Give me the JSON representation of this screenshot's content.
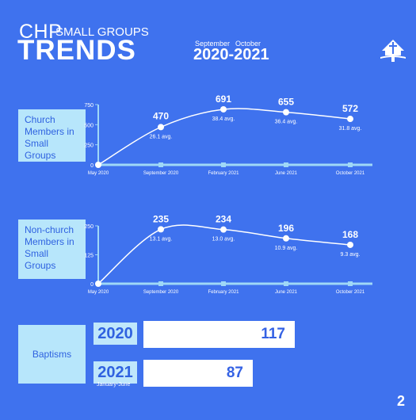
{
  "header": {
    "chp": "CHP",
    "small_groups": "SMALL GROUPS",
    "trends": "TRENDS",
    "month_start": "September",
    "month_end": "October",
    "years": "2020-2021"
  },
  "labels": {
    "church": "Church Members in Small Groups",
    "nonchurch": "Non-church Members in Small Groups",
    "baptisms": "Baptisms"
  },
  "chart_data": [
    {
      "type": "line",
      "x": [
        "May 2020",
        "September 2020",
        "February 2021",
        "June 2021",
        "October 2021"
      ],
      "values": [
        0,
        470,
        691,
        655,
        572
      ],
      "point_labels": [
        "",
        "470",
        "691",
        "655",
        "572"
      ],
      "avg_labels": [
        "",
        "26.1 avg.",
        "38.4 avg.",
        "36.4 avg.",
        "31.8 avg."
      ],
      "yticks": [
        "750",
        "500",
        "250",
        "0"
      ],
      "ylim": [
        0,
        750
      ]
    },
    {
      "type": "line",
      "x": [
        "May 2020",
        "September 2020",
        "February 2021",
        "June 2021",
        "October 2021"
      ],
      "values": [
        0,
        235,
        234,
        196,
        168
      ],
      "point_labels": [
        "",
        "235",
        "234",
        "196",
        "168"
      ],
      "avg_labels": [
        "",
        "13.1 avg.",
        "13.0 avg.",
        "10.9 avg.",
        "9.3 avg."
      ],
      "yticks": [
        "250",
        "125",
        "0"
      ],
      "ylim": [
        0,
        250
      ]
    },
    {
      "type": "bar",
      "categories": [
        "2020",
        "2021"
      ],
      "values": [
        117,
        87
      ],
      "category_notes": [
        "",
        "January-June"
      ]
    }
  ],
  "page_number": "2",
  "colors": {
    "background": "#3f72ee",
    "label_bg": "#b7e6fb",
    "line": "#ffffff",
    "axis": "#9fd8f7",
    "bar_text": "#3562e4"
  }
}
